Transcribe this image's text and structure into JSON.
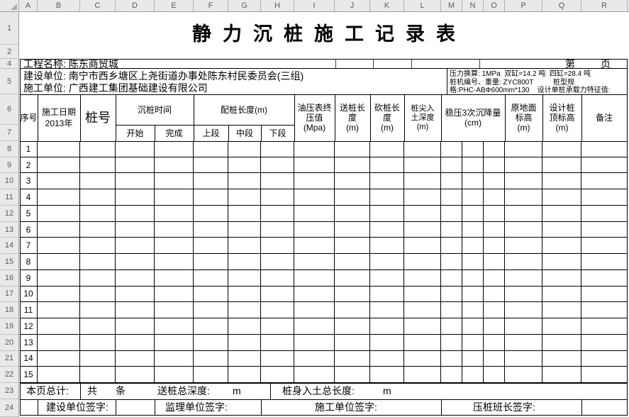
{
  "sheet": {
    "column_letters": [
      "A",
      "B",
      "C",
      "D",
      "E",
      "F",
      "G",
      "H",
      "I",
      "J",
      "K",
      "L",
      "M",
      "N",
      "O",
      "P",
      "Q",
      "R"
    ],
    "row_numbers": [
      "1",
      "2",
      "4",
      "5",
      "6",
      "7",
      "8",
      "9",
      "10",
      "11",
      "12",
      "13",
      "14",
      "15",
      "16",
      "17",
      "18",
      "19",
      "20",
      "21",
      "22",
      "23",
      "24"
    ]
  },
  "title": "静力沉桩施工记录表",
  "info": {
    "project_label": "工程名称: 陈东商贸城",
    "page_prefix": "第",
    "page_suffix": "页",
    "builder_line": "建设单位: 南宁市西乡塘区上尧街道办事处陈东村民委员会(三组)",
    "contractor_line": "施工单位: 广西建工集团基础建设有限公司",
    "machine_lines": [
      "压力换算: 1MPa  双缸=14.2 吨  四缸=28.4 吨",
      "桩机编号、重量: ZYC800T          桩型规",
      "格:PHC-ABΦ600mm*130    设计单桩承载力特征值:"
    ]
  },
  "headers": {
    "seq": "序号",
    "date": "施工日期\n2013年",
    "pile_no": "桩号",
    "sink_time": "沉桩时间",
    "start": "开始",
    "finish": "完成",
    "pile_length": "配桩长度(m)",
    "upper": "上段",
    "middle": "中段",
    "lower": "下段",
    "oil_pressure": "油压表终\n压值\n(Mpa)",
    "send_length": "送桩长\n度\n(m)",
    "cut_length": "砍桩长\n度\n(m)",
    "tip_depth": "桩尖入\n土深度\n(m)",
    "settlement": "稳压3次沉降量\n(cm)",
    "ground_elev": "原地面\n标高\n(m)",
    "design_elev": "设计桩\n顶标高\n(m)",
    "remark": "备注"
  },
  "rows": [
    "1",
    "2",
    "3",
    "4",
    "5",
    "6",
    "7",
    "8",
    "9",
    "10",
    "11",
    "12",
    "13",
    "14",
    "15"
  ],
  "footer": {
    "total_label": "本页总计:",
    "gong": "共",
    "tiao": "条",
    "send_depth_label": "送桩总深度:",
    "send_depth_unit": "m",
    "body_length_label": "桩身入土总长度:",
    "body_length_unit": "m",
    "sign_builder": "建设单位签字:",
    "sign_supervisor": "监理单位签字:",
    "sign_contractor": "施工单位签字:",
    "sign_foreman": "压桩班长签字:"
  },
  "colors": {
    "grid_line": "#000000",
    "gutter_bg": "#e9e9e9",
    "gutter_border": "#9e9e9e",
    "gutter_text": "#5b5b5b",
    "sheet_bg": "#ffffff"
  }
}
